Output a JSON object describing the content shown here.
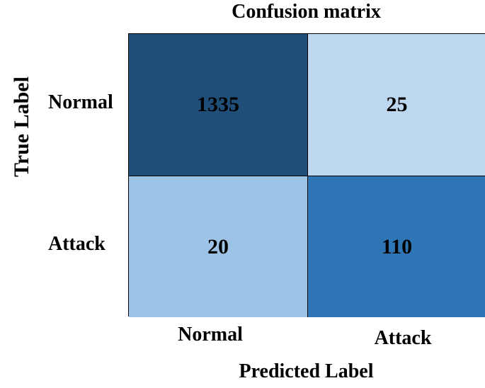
{
  "chart_data": {
    "type": "heatmap",
    "title": "Confusion matrix",
    "xlabel": "Predicted Label",
    "ylabel": "True Label",
    "row_labels": [
      "Normal",
      "Attack"
    ],
    "col_labels": [
      "Normal",
      "Attack"
    ],
    "values": [
      [
        1335,
        25
      ],
      [
        20,
        110
      ]
    ],
    "cell_colors": [
      [
        "#1f4e79",
        "#bdd7ee"
      ],
      [
        "#9dc3e6",
        "#2e75b6"
      ]
    ],
    "colormap": "blues"
  }
}
